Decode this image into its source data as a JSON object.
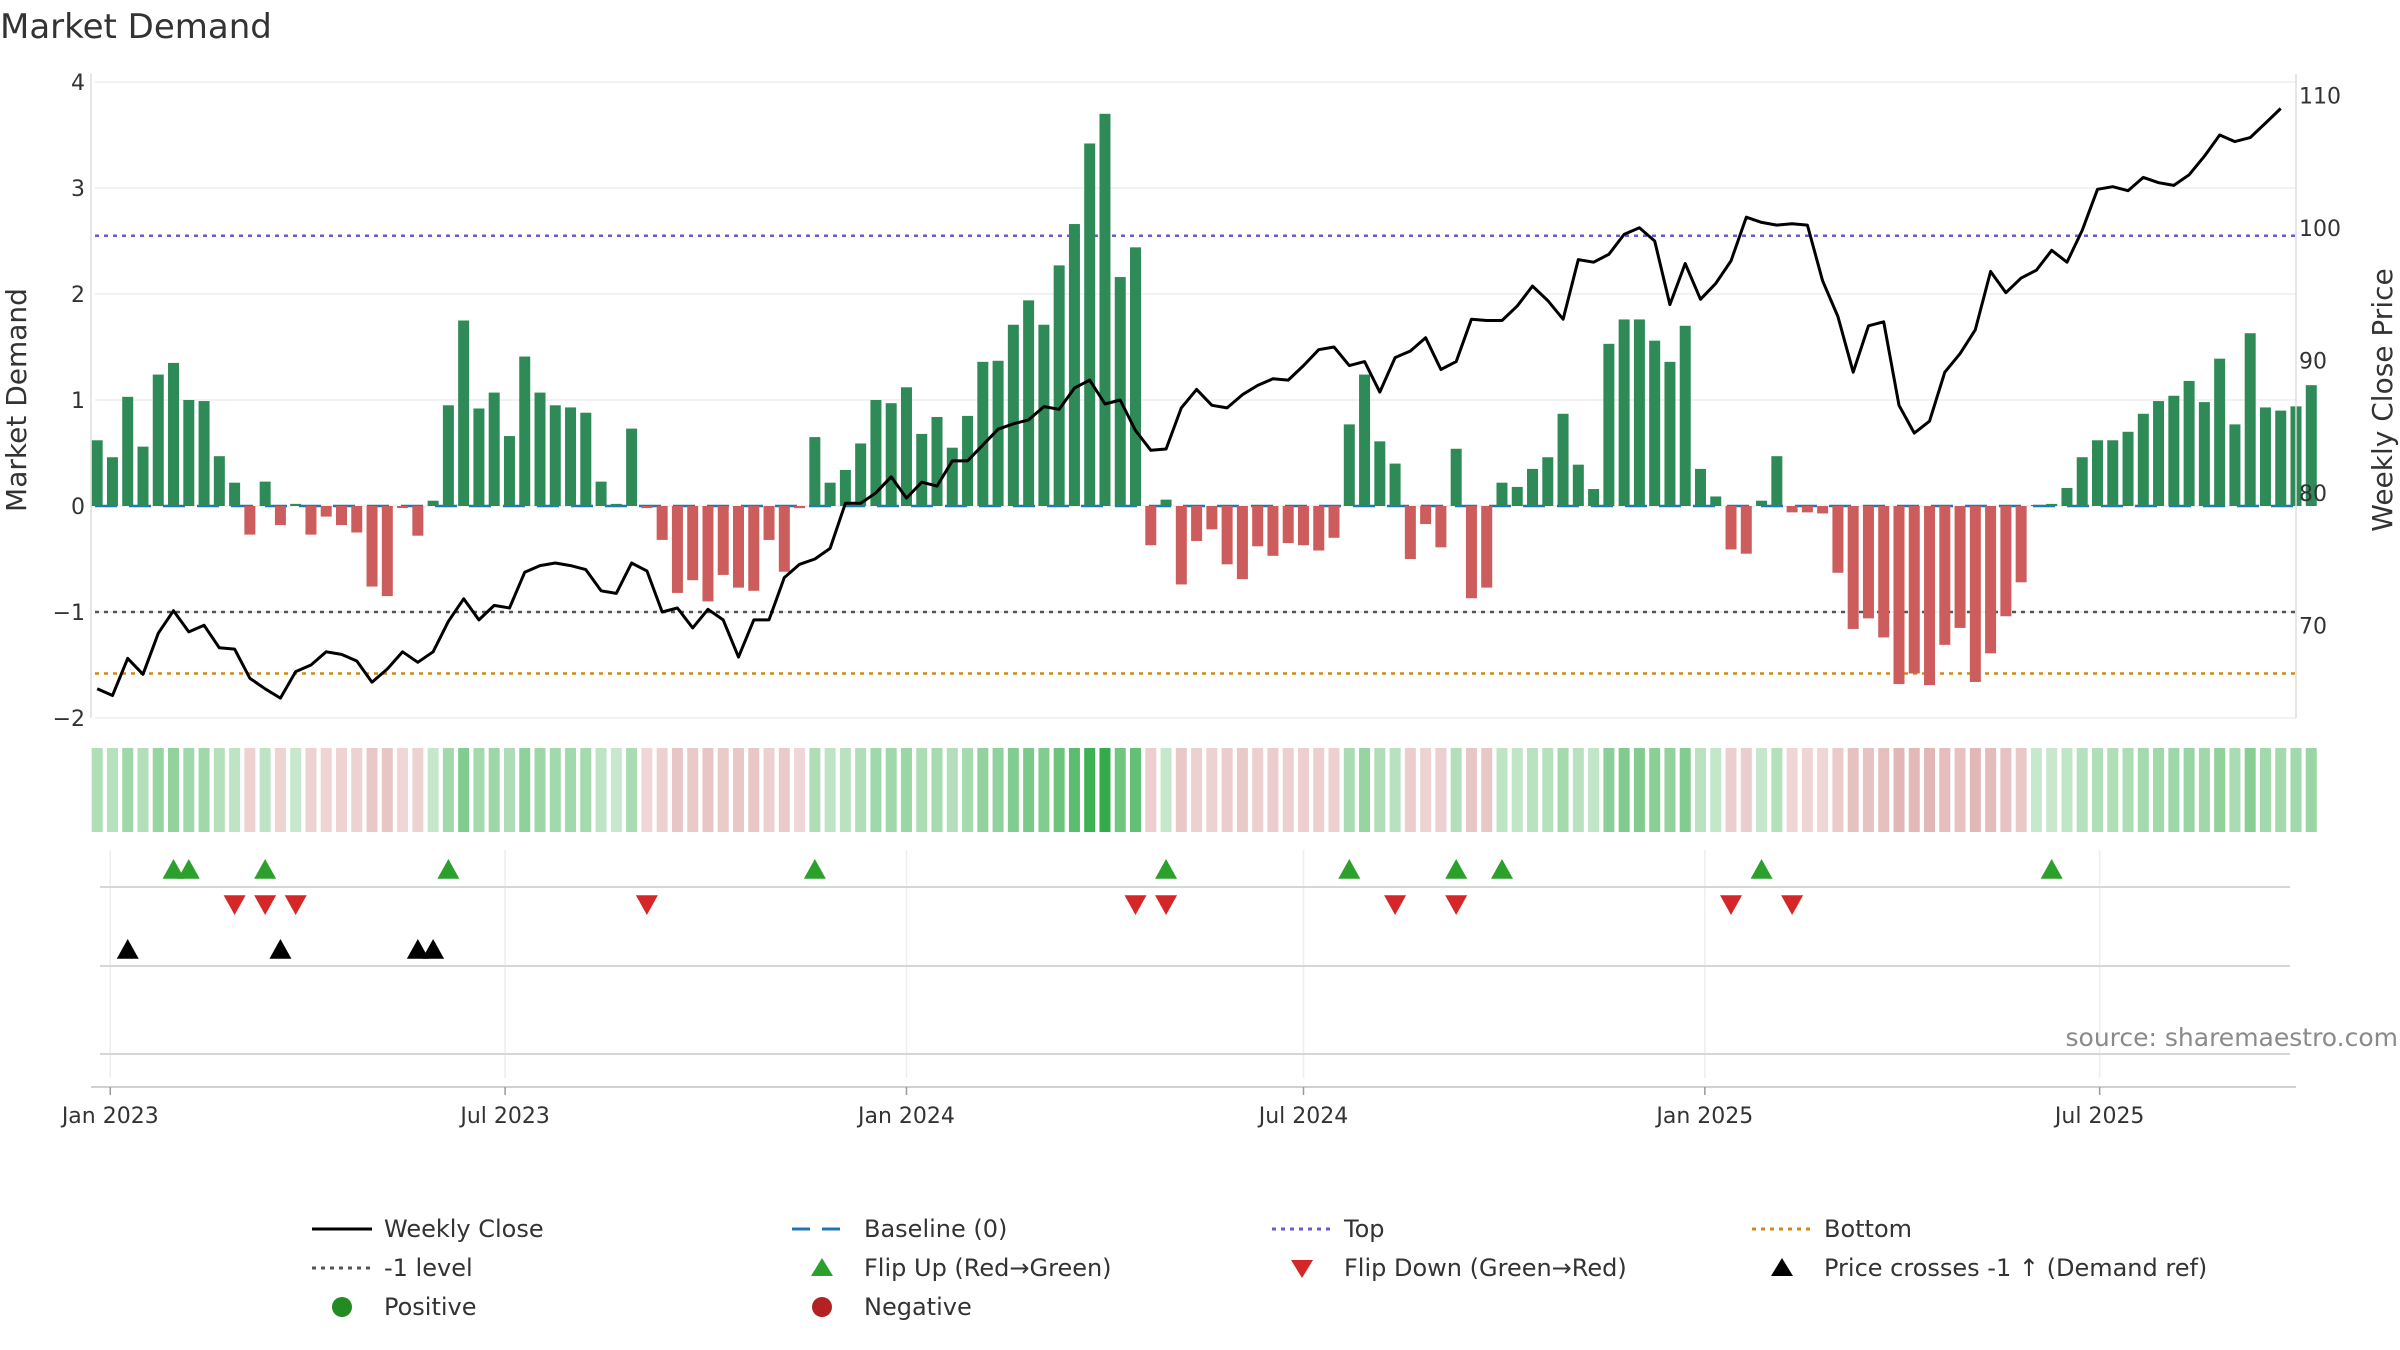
{
  "chart_data": {
    "type": "bar",
    "title": "Market Demand",
    "ylabel": "Market Demand",
    "y2label": "Weekly Close Price",
    "ylim": [
      -2,
      4
    ],
    "y2lim": [
      63,
      111
    ],
    "yticks": [
      "−2",
      "−1",
      "0",
      "1",
      "2",
      "3",
      "4"
    ],
    "y2ticks": [
      "70",
      "80",
      "90",
      "100",
      "110"
    ],
    "x_ticks": [
      "Jan 2023",
      "Jul 2023",
      "Jan 2024",
      "Jul 2024",
      "Jan 2025",
      "Jul 2025"
    ],
    "x_tick_dates": [
      "2023-01-01",
      "2023-07-01",
      "2024-01-01",
      "2024-07-01",
      "2025-01-01",
      "2025-07-01"
    ],
    "x_range": [
      "2022-12-25",
      "2025-09-29"
    ],
    "first_week": "2022-12-26",
    "reference_lines": {
      "top": 2.55,
      "minus_one": -1.0,
      "bottom": -1.58
    },
    "colors": {
      "positive_bar": "#2e8b57",
      "negative_bar": "#cd5c5c",
      "close_line": "#000000",
      "baseline": "#1f77b4",
      "top_line": "#6a5acd",
      "bottom_line": "#d08a10",
      "minus_one_line": "#555555",
      "flip_up": "#2ca02c",
      "flip_down": "#d62728",
      "cross": "#000000",
      "positive_dot": "#228b22",
      "negative_dot": "#b22222"
    },
    "series": [
      {
        "name": "Market Demand",
        "kind": "bar",
        "values": [
          0.62,
          0.46,
          1.03,
          0.56,
          1.24,
          1.35,
          1.0,
          0.99,
          0.47,
          0.22,
          -0.27,
          0.23,
          -0.18,
          0.02,
          -0.27,
          -0.1,
          -0.18,
          -0.25,
          -0.76,
          -0.85,
          -0.02,
          -0.28,
          0.05,
          0.95,
          1.75,
          0.92,
          1.07,
          0.66,
          1.41,
          1.07,
          0.95,
          0.93,
          0.88,
          0.23,
          0.02,
          0.73,
          -0.02,
          -0.32,
          -0.82,
          -0.7,
          -0.9,
          -0.65,
          -0.77,
          -0.8,
          -0.32,
          -0.62,
          -0.02,
          0.65,
          0.22,
          0.34,
          0.59,
          1.0,
          0.97,
          1.12,
          0.68,
          0.84,
          0.55,
          0.85,
          1.36,
          1.37,
          1.71,
          1.94,
          1.71,
          2.27,
          2.66,
          3.42,
          3.7,
          2.16,
          2.44,
          -0.37,
          0.06,
          -0.74,
          -0.33,
          -0.22,
          -0.55,
          -0.69,
          -0.38,
          -0.47,
          -0.35,
          -0.37,
          -0.42,
          -0.3,
          0.77,
          1.24,
          0.61,
          0.4,
          -0.5,
          -0.17,
          -0.39,
          0.54,
          -0.87,
          -0.77,
          0.22,
          0.18,
          0.35,
          0.46,
          0.87,
          0.39,
          0.16,
          1.53,
          1.76,
          1.76,
          1.56,
          1.36,
          1.7,
          0.35,
          0.09,
          -0.41,
          -0.45,
          0.05,
          0.47,
          -0.06,
          -0.06,
          -0.07,
          -0.63,
          -1.16,
          -1.06,
          -1.24,
          -1.68,
          -1.58,
          -1.69,
          -1.31,
          -1.15,
          -1.66,
          -1.39,
          -1.04,
          -0.72,
          0.01,
          0.02,
          0.17,
          0.46,
          0.62,
          0.62,
          0.7,
          0.87,
          0.99,
          1.04,
          1.18,
          0.98,
          1.39,
          0.77,
          1.63,
          0.93,
          0.9,
          0.94,
          1.14
        ]
      },
      {
        "name": "Weekly Close",
        "kind": "line",
        "axis": "right",
        "values": [
          65.2,
          64.7,
          67.5,
          66.3,
          69.4,
          71.1,
          69.5,
          70.0,
          68.3,
          68.2,
          66.0,
          65.2,
          64.5,
          66.5,
          67.0,
          68.0,
          67.8,
          67.3,
          65.7,
          66.7,
          68.0,
          67.2,
          68.0,
          70.3,
          72.0,
          70.4,
          71.5,
          71.3,
          74.0,
          74.5,
          74.7,
          74.5,
          74.2,
          72.6,
          72.4,
          74.7,
          74.1,
          71.0,
          71.3,
          69.8,
          71.2,
          70.4,
          67.6,
          70.4,
          70.4,
          73.6,
          74.6,
          75.0,
          75.8,
          79.2,
          79.2,
          80.0,
          81.2,
          79.6,
          80.8,
          80.5,
          82.4,
          82.4,
          83.6,
          84.8,
          85.2,
          85.5,
          86.5,
          86.3,
          87.9,
          88.5,
          86.7,
          87.0,
          84.7,
          83.2,
          83.3,
          86.4,
          87.8,
          86.6,
          86.4,
          87.4,
          88.1,
          88.6,
          88.5,
          89.6,
          90.8,
          91.0,
          89.6,
          89.9,
          87.6,
          90.2,
          90.7,
          91.7,
          89.3,
          89.9,
          93.1,
          93.0,
          93.0,
          94.1,
          95.6,
          94.5,
          93.1,
          97.6,
          97.4,
          98.0,
          99.5,
          100.0,
          99.0,
          94.2,
          97.3,
          94.6,
          95.8,
          97.5,
          100.8,
          100.4,
          100.2,
          100.3,
          100.2,
          96.0,
          93.3,
          89.1,
          92.6,
          92.9,
          86.6,
          84.5,
          85.4,
          89.1,
          90.5,
          92.3,
          96.7,
          95.1,
          96.2,
          96.8,
          98.3,
          97.4,
          99.8,
          102.9,
          103.1,
          102.8,
          103.8,
          103.4,
          103.2,
          104.0,
          105.4,
          107.0,
          106.5,
          106.8,
          107.9,
          109.0
        ]
      },
      {
        "name": "Baseline (0)",
        "kind": "hline",
        "value": 0
      },
      {
        "name": "Top",
        "kind": "hline",
        "value": 2.55
      },
      {
        "name": "Bottom",
        "kind": "hline",
        "value": -1.58
      },
      {
        "name": "-1 level",
        "kind": "hline",
        "value": -1.0
      }
    ],
    "heat_strip_values": "same as Market Demand series (green shades positive, red shades negative)",
    "events": {
      "flip_up_weeks": [
        5,
        6,
        11,
        23,
        47,
        70,
        82,
        89,
        92,
        109,
        128
      ],
      "flip_down_weeks": [
        4,
        5,
        6,
        17,
        33,
        34,
        43,
        47,
        55,
        59
      ],
      "flip_down_offset": [
        5,
        6,
        7,
        18,
        35,
        36,
        44,
        46,
        54,
        56
      ],
      "price_cross_weeks": [
        2,
        12,
        21,
        22
      ]
    },
    "legend": [
      {
        "label": "Weekly Close",
        "symbol": "line",
        "color": "#000000"
      },
      {
        "label": "Baseline (0)",
        "symbol": "dash",
        "color": "#1f77b4"
      },
      {
        "label": "Top",
        "symbol": "dot",
        "color": "#6a5acd"
      },
      {
        "label": "Bottom",
        "symbol": "dot",
        "color": "#d08a10"
      },
      {
        "label": "-1 level",
        "symbol": "dot",
        "color": "#555555"
      },
      {
        "label": "Flip Up (Red→Green)",
        "symbol": "triangle-up",
        "color": "#2ca02c"
      },
      {
        "label": "Flip Down (Green→Red)",
        "symbol": "triangle-down",
        "color": "#d62728"
      },
      {
        "label": "Price crosses -1 ↑ (Demand ref)",
        "symbol": "triangle-up",
        "color": "#000000"
      },
      {
        "label": "Positive",
        "symbol": "circle",
        "color": "#228b22"
      },
      {
        "label": "Negative",
        "symbol": "circle",
        "color": "#b22222"
      }
    ],
    "legend_placement": "bottom",
    "grid": true
  },
  "source_note": "source: sharemaestro.com"
}
